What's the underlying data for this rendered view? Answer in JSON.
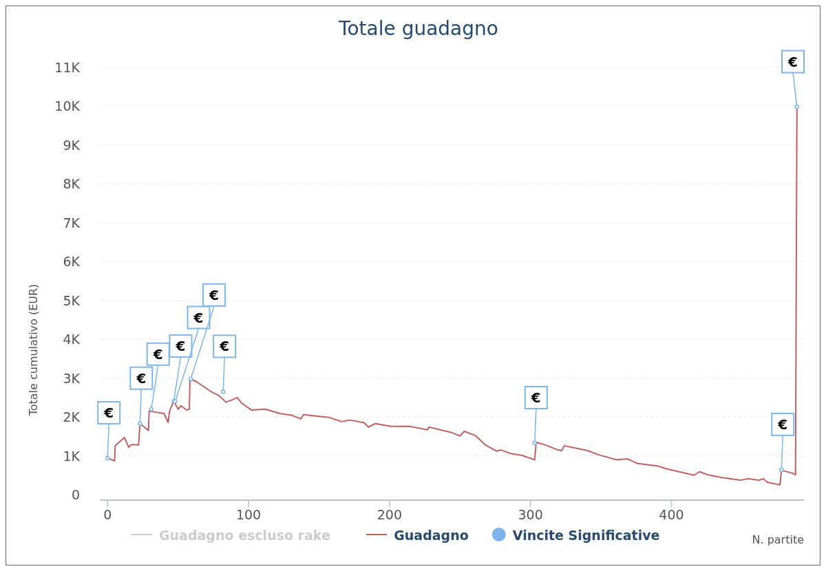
{
  "chart_data": {
    "type": "line",
    "title": "Totale guadagno",
    "xlabel": "N. partite",
    "ylabel": "Totale cumulativo (EUR)",
    "xlim": [
      -5,
      494
    ],
    "xticks": [
      0,
      100,
      200,
      300,
      400
    ],
    "ylim": [
      0,
      11000
    ],
    "yticks": [
      0,
      {
        "value": 1000,
        "label": "1K"
      },
      {
        "value": 2000,
        "label": "2K"
      },
      {
        "value": 3000,
        "label": "3K"
      },
      {
        "value": 4000,
        "label": "4K"
      },
      {
        "value": 5000,
        "label": "5K"
      },
      {
        "value": 6000,
        "label": "6K"
      },
      {
        "value": 7000,
        "label": "7K"
      },
      {
        "value": 8000,
        "label": "8K"
      },
      {
        "value": 9000,
        "label": "9K"
      },
      {
        "value": 10000,
        "label": "10K"
      },
      {
        "value": 11000,
        "label": "11K"
      }
    ],
    "grid": "y",
    "legend": "bottom",
    "series": [
      {
        "name": "Guadagno escluso rake",
        "color": "#cccccc"
      },
      {
        "name": "Guadagno",
        "color": "#c06060",
        "x": [
          0,
          5,
          5.4,
          12,
          15,
          17,
          22,
          23,
          29,
          29.5,
          40,
          43,
          44,
          47,
          50,
          52,
          56,
          58,
          58.5,
          63,
          74,
          79,
          84,
          89,
          92,
          95,
          102,
          112,
          122,
          131,
          137,
          139,
          157,
          166,
          172,
          182,
          185,
          190,
          201,
          214,
          227,
          228,
          235,
          244,
          250,
          253,
          261,
          268,
          276,
          279,
          286,
          294,
          303,
          304,
          312,
          318,
          322,
          324,
          341,
          348,
          361,
          369,
          376,
          390,
          397,
          416,
          420,
          426,
          436,
          449,
          454,
          462,
          465,
          468,
          477,
          478,
          481,
          486,
          488,
          489
        ],
        "values": [
          940,
          870,
          1260,
          1470,
          1220,
          1290,
          1280,
          1830,
          1650,
          2150,
          2090,
          1860,
          2150,
          2410,
          2200,
          2290,
          2180,
          2200,
          2980,
          2910,
          2640,
          2550,
          2380,
          2450,
          2500,
          2360,
          2180,
          2200,
          2090,
          2040,
          1950,
          2060,
          1990,
          1880,
          1920,
          1850,
          1740,
          1830,
          1760,
          1760,
          1670,
          1740,
          1680,
          1600,
          1510,
          1630,
          1520,
          1280,
          1120,
          1150,
          1060,
          1010,
          900,
          1350,
          1260,
          1170,
          1130,
          1260,
          1130,
          1030,
          900,
          920,
          800,
          740,
          660,
          500,
          590,
          510,
          440,
          370,
          410,
          370,
          410,
          320,
          250,
          620,
          600,
          550,
          510,
          9980
        ]
      },
      {
        "name": "Vincite Significative",
        "type": "scatter",
        "color": "#7cb5ec",
        "x": [
          0,
          23,
          31,
          47,
          48,
          59,
          82,
          303,
          478,
          489
        ],
        "values": [
          940,
          1830,
          2200,
          2410,
          2400,
          2980,
          2650,
          1330,
          640,
          9980
        ],
        "value_labels": [
          "€",
          "€",
          "€",
          "€",
          "€",
          "€",
          "€",
          "€",
          "€",
          "€"
        ]
      }
    ]
  }
}
